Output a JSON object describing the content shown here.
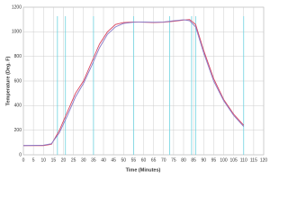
{
  "chart_data": {
    "type": "line",
    "x_label": "Time (Minutes)",
    "y_label": "Temperature (Deg. F)",
    "x": [
      0,
      10,
      14,
      18,
      22,
      26,
      30,
      34,
      38,
      42,
      46,
      50,
      55,
      60,
      65,
      70,
      75,
      80,
      83,
      86,
      90,
      95,
      100,
      105,
      110
    ],
    "series": [
      {
        "color": "#d9455f",
        "values": [
          75,
          75,
          85,
          200,
          350,
          500,
          600,
          750,
          900,
          1000,
          1060,
          1075,
          1080,
          1078,
          1075,
          1078,
          1085,
          1095,
          1100,
          1060,
          850,
          620,
          450,
          330,
          240
        ]
      },
      {
        "color": "#8a7bc8",
        "values": [
          75,
          78,
          90,
          180,
          320,
          470,
          580,
          720,
          870,
          980,
          1040,
          1068,
          1078,
          1080,
          1078,
          1080,
          1090,
          1098,
          1090,
          1040,
          830,
          600,
          440,
          320,
          230
        ]
      }
    ],
    "markers": [
      17,
      21,
      35,
      55,
      73,
      84,
      86,
      110
    ],
    "marker_color": "#6fd3e0",
    "xlim": [
      0,
      120
    ],
    "xticks": [
      0,
      5,
      10,
      15,
      20,
      25,
      30,
      35,
      40,
      45,
      50,
      55,
      60,
      65,
      70,
      75,
      80,
      85,
      90,
      95,
      100,
      105,
      110,
      115,
      120
    ],
    "ylim": [
      0,
      1200
    ],
    "yticks": [
      0,
      200,
      400,
      600,
      800,
      1000,
      1200
    ],
    "grid": true
  }
}
